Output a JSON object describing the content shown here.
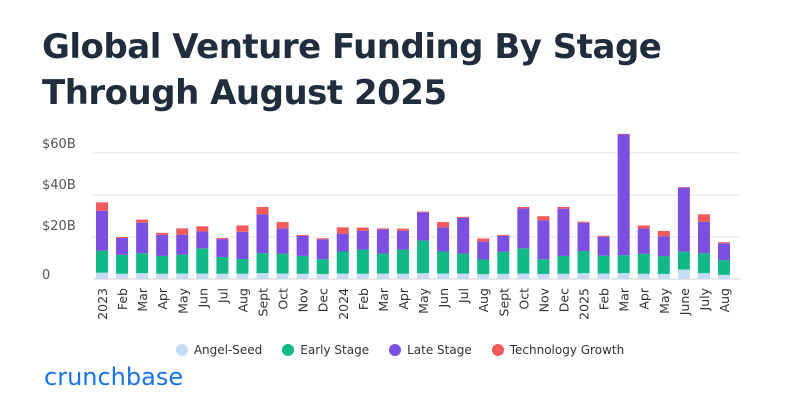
{
  "page": {
    "title": "Global Venture Funding By Stage Through August 2025"
  },
  "brand": {
    "logo_text": "crunchbase",
    "logo_color": "#1a73e8"
  },
  "chart_data": {
    "type": "bar",
    "stacked": true,
    "title": "Global Venture Funding By Stage Through August 2025",
    "y_ticks": [
      "$60B",
      "$40B",
      "$20B",
      "0"
    ],
    "ylim": [
      0,
      70
    ],
    "grid": true,
    "legend_position": "bottom",
    "categories": [
      "2023",
      "Feb",
      "Mar",
      "Apr",
      "May",
      "Jun",
      "Jul",
      "Aug",
      "Sept",
      "Oct",
      "Nov",
      "Dec",
      "2024",
      "Feb",
      "Mar",
      "Apr",
      "May",
      "Jun",
      "Jul",
      "Aug",
      "Sept",
      "Oct",
      "Nov",
      "Dec",
      "2025",
      "Feb",
      "Mar",
      "Apr",
      "May",
      "June",
      "July",
      "Aug"
    ],
    "series": [
      {
        "name": "Angel-Seed",
        "color": "#c6dcf5",
        "values": [
          3,
          2.5,
          2.8,
          2.5,
          2.6,
          2.6,
          2.5,
          2.5,
          2.8,
          2.6,
          2.5,
          2.4,
          2.6,
          2.5,
          2.6,
          2.5,
          2.8,
          2.6,
          2.6,
          2.3,
          2.5,
          2.6,
          2.4,
          2.5,
          2.8,
          2.6,
          2.8,
          2.5,
          2.4,
          4.5,
          2.8,
          2.0
        ]
      },
      {
        "name": "Early Stage",
        "color": "#12b886",
        "values": [
          10.5,
          9,
          9.5,
          8.5,
          9,
          12,
          8,
          7,
          9.5,
          9.5,
          8.5,
          7,
          10.5,
          11.5,
          9.5,
          11.5,
          15.5,
          10.5,
          9.5,
          7,
          10.5,
          12,
          7,
          8.5,
          10.5,
          8.5,
          8.5,
          9.5,
          8.5,
          8.5,
          9.5,
          7.0
        ]
      },
      {
        "name": "Late Stage",
        "color": "#7b4fe0",
        "values": [
          19,
          8,
          14.5,
          10,
          9.5,
          8,
          8.5,
          13,
          18.5,
          12,
          9.5,
          9.5,
          8.5,
          9,
          11.5,
          9,
          13.5,
          11.5,
          17,
          8.5,
          7.5,
          19,
          18.5,
          22.5,
          13.5,
          9,
          57.5,
          12,
          9.5,
          30.5,
          15,
          8.0
        ]
      },
      {
        "name": "Technology Growth",
        "color": "#f05a5a",
        "values": [
          4,
          0.5,
          1.5,
          1,
          3,
          2.5,
          0.5,
          3,
          3.5,
          3,
          0.5,
          0.5,
          3,
          1.5,
          0.5,
          1,
          0.3,
          2.5,
          0.5,
          1.5,
          0.5,
          0.7,
          2,
          0.8,
          0.5,
          0.5,
          0.3,
          1.5,
          2.5,
          0.3,
          3.5,
          0.5
        ]
      }
    ]
  }
}
